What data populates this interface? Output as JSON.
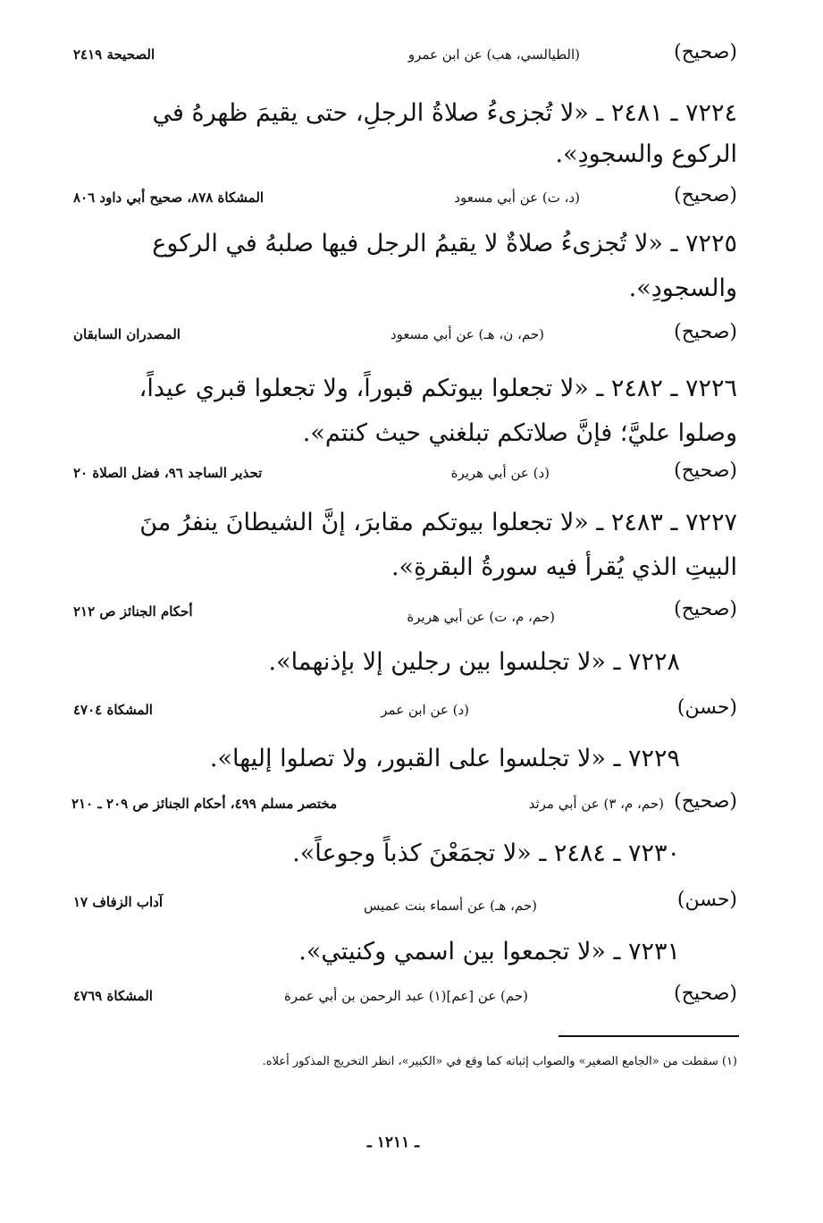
{
  "entries": [
    {
      "grade": "(صحيح)",
      "source": "(الطيالسي، هب) عن ابن عمرو",
      "ref": "الصحيحة ٢٤١٩"
    },
    {
      "lines": [
        "٧٢٢٤ ـ ٢٤٨١ ـ «لا تُجزىءُ صلاةُ الرجلِ، حتى يقيمَ ظهرهُ في",
        "الركوع والسجودِ»."
      ],
      "grade": "(صحيح)",
      "source": "(د، ت) عن أبي مسعود",
      "ref": "المشكاة ٨٧٨، صحيح أبي داود ٨٠٦"
    },
    {
      "lines": [
        "٧٢٢٥ ـ «لا تُجزىءُ صلاةٌ لا يقيمُ الرجل فيها صلبهُ في الركوع",
        "والسجودِ»."
      ],
      "grade": "(صحيح)",
      "source": "(حم، ن، هـ) عن أبي مسعود",
      "ref": "المصدران السابقان"
    },
    {
      "lines": [
        "٧٢٢٦ ـ ٢٤٨٢ ـ «لا تجعلوا بيوتكم قبوراً، ولا تجعلوا قبري عيداً،",
        "وصلوا عليَّ؛ فإنَّ صلاتكم تبلغني حيث كنتم»."
      ],
      "grade": "(صحيح)",
      "source": "(د) عن أبي هريرة",
      "ref": "تحذير الساجد ٩٦، فضل الصلاة ٢٠"
    },
    {
      "lines": [
        "٧٢٢٧ ـ ٢٤٨٣ ـ «لا تجعلوا بيوتكم مقابرَ، إنَّ الشيطانَ ينفرُ منَ",
        "البيتِ الذي يُقرأ فيه سورةُ البقرةِ»."
      ],
      "grade": "(صحيح)",
      "source": "(حم، م، ت) عن أبي هريرة",
      "ref": "أحكام الجنائز ص ٢١٢"
    },
    {
      "lines": [
        "٧٢٢٨ ـ «لا تجلسوا بين رجلين إلا بإذنهما»."
      ],
      "grade": "(حسن)",
      "source": "(د) عن ابن عمر",
      "ref": "المشكاة ٤٧٠٤"
    },
    {
      "lines": [
        "٧٢٢٩ ـ «لا تجلسوا على القبور، ولا تصلوا إليها»."
      ],
      "grade": "(صحيح)",
      "source": "(حم، م، ٣) عن أبي مرثد",
      "ref": "مختصر مسلم ٤٩٩، أحكام الجنائز ص ٢٠٩ ـ ٢١٠"
    },
    {
      "lines": [
        "٧٢٣٠ ـ ٢٤٨٤ ـ «لا تجمَعْنَ كذباً وجوعاً»."
      ],
      "grade": "(حسن)",
      "source": "(حم، هـ) عن أسماء بنت عميس",
      "ref": "آداب الزفاف ١٧"
    },
    {
      "lines": [
        "٧٢٣١ ـ «لا تجمعوا بين اسمي وكنيتي»."
      ],
      "grade": "(صحيح)",
      "source": "(حم) عن [عم](١) عبد الرحمن بن أبي عمرة",
      "ref": "المشكاة ٤٧٦٩"
    }
  ],
  "footnote": "(١) سقطت من «الجامع الصغير» والصواب إثباته كما وقع في «الكبير»، انظر التخريج المذكور أعلاه.",
  "page_number": "ـ ١٢١١ ـ"
}
